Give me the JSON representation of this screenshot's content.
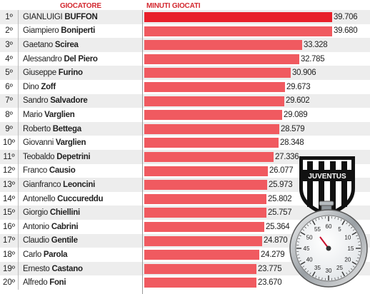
{
  "header": {
    "player_col": "GIOCATORE",
    "minutes_col": "MINUTI GIOCATI"
  },
  "chart_data": {
    "type": "bar",
    "title": "",
    "xlabel": "MINUTI GIOCATI",
    "ylabel": "GIOCATORE",
    "xlim": [
      0,
      39706
    ],
    "rows": [
      {
        "rank": "1º",
        "first": "GIANLUIGI",
        "last": "BUFFON",
        "value": 39706,
        "label": "39.706"
      },
      {
        "rank": "2º",
        "first": "Giampiero",
        "last": "Boniperti",
        "value": 39680,
        "label": "39.680"
      },
      {
        "rank": "3º",
        "first": "Gaetano",
        "last": "Scirea",
        "value": 33328,
        "label": "33.328"
      },
      {
        "rank": "4º",
        "first": "Alessandro",
        "last": "Del Piero",
        "value": 32785,
        "label": "32.785"
      },
      {
        "rank": "5º",
        "first": "Giuseppe",
        "last": "Furino",
        "value": 30906,
        "label": "30.906"
      },
      {
        "rank": "6º",
        "first": "Dino",
        "last": "Zoff",
        "value": 29673,
        "label": "29.673"
      },
      {
        "rank": "7º",
        "first": "Sandro",
        "last": "Salvadore",
        "value": 29602,
        "label": "29.602"
      },
      {
        "rank": "8º",
        "first": "Mario",
        "last": "Varglien",
        "value": 29089,
        "label": "29.089"
      },
      {
        "rank": "9º",
        "first": "Roberto",
        "last": "Bettega",
        "value": 28579,
        "label": "28.579"
      },
      {
        "rank": "10º",
        "first": "Giovanni",
        "last": "Varglien",
        "value": 28348,
        "label": "28.348"
      },
      {
        "rank": "11º",
        "first": "Teobaldo",
        "last": "Depetrini",
        "value": 27336,
        "label": "27.336"
      },
      {
        "rank": "12º",
        "first": "Franco",
        "last": "Causio",
        "value": 26077,
        "label": "26.077"
      },
      {
        "rank": "13º",
        "first": "Gianfranco",
        "last": "Leoncini",
        "value": 25973,
        "label": "25.973"
      },
      {
        "rank": "14º",
        "first": "Antonello",
        "last": "Cuccureddu",
        "value": 25802,
        "label": "25.802"
      },
      {
        "rank": "15º",
        "first": "Giorgio",
        "last": "Chiellini",
        "value": 25757,
        "label": "25.757"
      },
      {
        "rank": "16º",
        "first": "Antonio",
        "last": "Cabrini",
        "value": 25364,
        "label": "25.364"
      },
      {
        "rank": "17º",
        "first": "Claudio",
        "last": "Gentile",
        "value": 24870,
        "label": "24.870"
      },
      {
        "rank": "18º",
        "first": "Carlo",
        "last": "Parola",
        "value": 24279,
        "label": "24.279"
      },
      {
        "rank": "19º",
        "first": "Ernesto",
        "last": "Castano",
        "value": 23775,
        "label": "23.775"
      },
      {
        "rank": "20º",
        "first": "Alfredo",
        "last": "Foni",
        "value": 23670,
        "label": "23.670"
      }
    ]
  },
  "badge": {
    "logo_text": "JUVENTUS",
    "stopwatch_numbers": [
      "60",
      "55",
      "5",
      "50",
      "10",
      "45",
      "15",
      "40",
      "20",
      "35",
      "30",
      "25"
    ]
  },
  "colors": {
    "bar": "#f05a60",
    "bar_top": "#e8202a",
    "header_red": "#d3282f"
  }
}
